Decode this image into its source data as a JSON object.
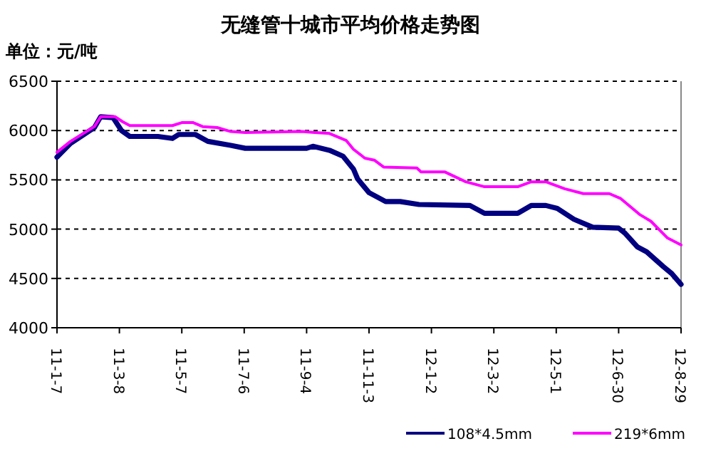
{
  "chart_data": {
    "type": "line",
    "title": "无缝管十城市平均价格走势图",
    "ylabel": "单位：元/吨",
    "xlim": [
      "2011-01-07",
      "2012-08-29"
    ],
    "xticks": [
      {
        "value": "2011-01-07",
        "label": "11-1-7"
      },
      {
        "value": "2011-03-08",
        "label": "11-3-8"
      },
      {
        "value": "2011-05-07",
        "label": "11-5-7"
      },
      {
        "value": "2011-07-06",
        "label": "11-7-6"
      },
      {
        "value": "2011-09-04",
        "label": "11-9-4"
      },
      {
        "value": "2011-11-03",
        "label": "11-11-3"
      },
      {
        "value": "2012-01-02",
        "label": "12-1-2"
      },
      {
        "value": "2012-03-02",
        "label": "12-3-2"
      },
      {
        "value": "2012-05-01",
        "label": "12-5-1"
      },
      {
        "value": "2012-06-30",
        "label": "12-6-30"
      },
      {
        "value": "2012-08-29",
        "label": "12-8-29"
      }
    ],
    "ylim": [
      4000,
      6500
    ],
    "yticks": [
      4000,
      4500,
      5000,
      5500,
      6000,
      6500
    ],
    "grid": "y",
    "legend": "bottom right",
    "marker": "none",
    "line_style": "solid",
    "series": [
      {
        "name": "108*4.5mm",
        "color": "#000080",
        "x": [
          "2011-01-07",
          "2011-01-20",
          "2011-02-12",
          "2011-02-18",
          "2011-03-02",
          "2011-03-10",
          "2011-03-18",
          "2011-04-14",
          "2011-04-28",
          "2011-05-04",
          "2011-05-20",
          "2011-06-01",
          "2011-06-23",
          "2011-07-07",
          "2011-09-04",
          "2011-09-10",
          "2011-09-26",
          "2011-10-09",
          "2011-10-19",
          "2011-10-23",
          "2011-11-03",
          "2011-11-19",
          "2011-12-03",
          "2011-12-21",
          "2012-02-08",
          "2012-02-22",
          "2012-03-25",
          "2012-04-07",
          "2012-04-21",
          "2012-05-02",
          "2012-05-18",
          "2012-06-05",
          "2012-06-30",
          "2012-07-06",
          "2012-07-18",
          "2012-07-27",
          "2012-08-12",
          "2012-08-20",
          "2012-08-29"
        ],
        "values": [
          5730,
          5870,
          6030,
          6140,
          6130,
          6000,
          5940,
          5940,
          5920,
          5960,
          5960,
          5890,
          5850,
          5820,
          5820,
          5840,
          5800,
          5740,
          5610,
          5510,
          5370,
          5280,
          5280,
          5250,
          5240,
          5160,
          5160,
          5240,
          5240,
          5210,
          5100,
          5020,
          5010,
          4960,
          4820,
          4770,
          4620,
          4550,
          4440
        ]
      },
      {
        "name": "219*6mm",
        "color": "#ff00ff",
        "x": [
          "2011-01-07",
          "2011-01-20",
          "2011-02-12",
          "2011-02-18",
          "2011-03-04",
          "2011-03-11",
          "2011-03-18",
          "2011-04-28",
          "2011-05-07",
          "2011-05-18",
          "2011-05-27",
          "2011-06-10",
          "2011-06-23",
          "2011-07-07",
          "2011-08-30",
          "2011-09-12",
          "2011-09-26",
          "2011-10-12",
          "2011-10-19",
          "2011-10-30",
          "2011-11-08",
          "2011-11-17",
          "2011-12-19",
          "2011-12-23",
          "2012-01-15",
          "2012-02-04",
          "2012-02-22",
          "2012-03-25",
          "2012-04-07",
          "2012-04-21",
          "2012-05-09",
          "2012-05-27",
          "2012-06-21",
          "2012-07-02",
          "2012-07-20",
          "2012-07-31",
          "2012-08-16",
          "2012-08-29"
        ],
        "values": [
          5780,
          5890,
          6040,
          6140,
          6140,
          6090,
          6050,
          6050,
          6080,
          6080,
          6040,
          6030,
          5990,
          5980,
          5990,
          5980,
          5970,
          5900,
          5810,
          5720,
          5700,
          5630,
          5620,
          5580,
          5580,
          5480,
          5430,
          5430,
          5480,
          5480,
          5410,
          5360,
          5360,
          5310,
          5150,
          5080,
          4910,
          4840
        ]
      }
    ]
  }
}
